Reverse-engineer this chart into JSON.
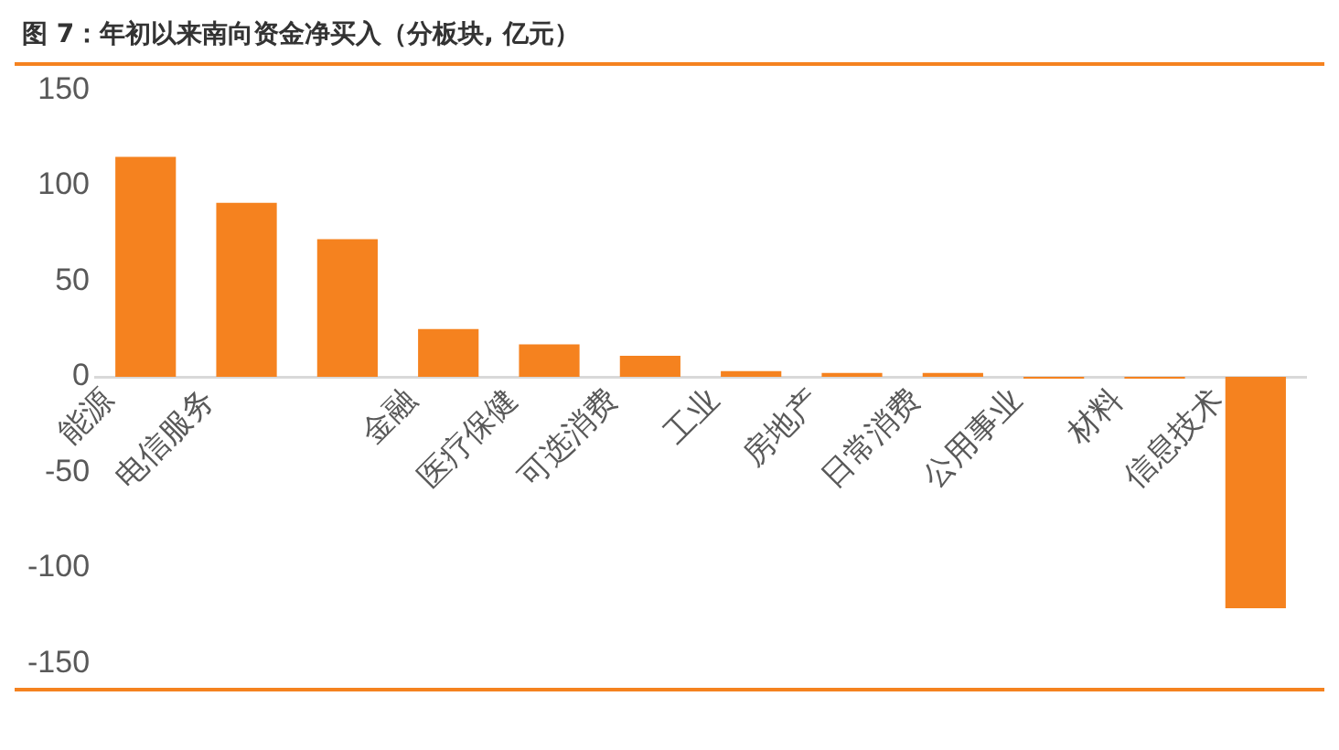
{
  "chart_data": {
    "type": "bar",
    "title": "图 7：年初以来南向资金净买入（分板块, 亿元）",
    "categories": [
      "能源",
      "电信服务",
      null,
      "金融",
      "医疗保健",
      "可选消费",
      "工业",
      "房地产",
      "日常消费",
      "公用事业",
      "材料",
      "信息技术"
    ],
    "values": [
      115,
      91,
      72,
      25,
      17,
      11,
      3,
      2,
      2,
      -1,
      -1,
      -121
    ],
    "color": "#f5821f",
    "ylim": [
      -150,
      150
    ],
    "yticks": [
      -150,
      -100,
      -50,
      0,
      50,
      100,
      150
    ],
    "grid": false,
    "legend": false
  }
}
